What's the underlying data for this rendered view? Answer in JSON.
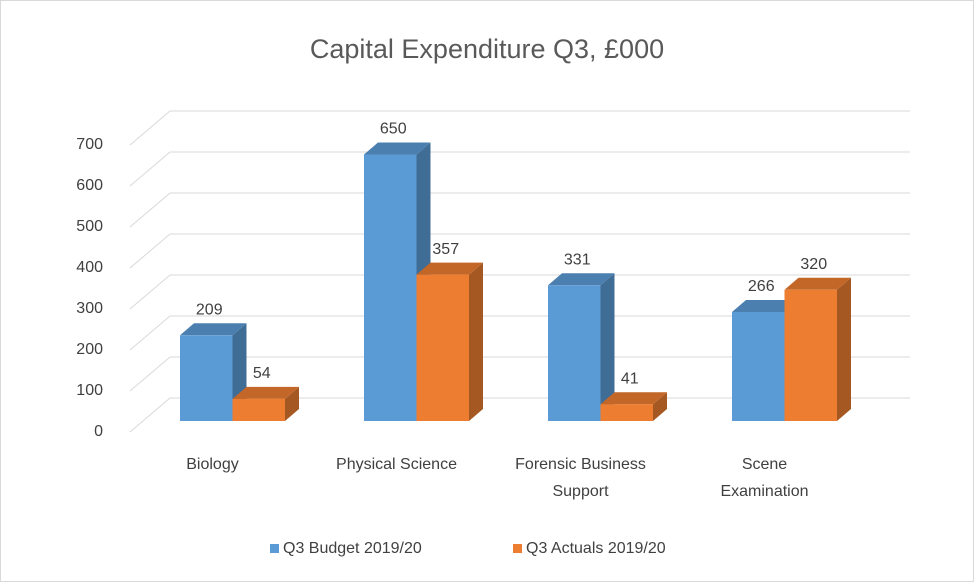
{
  "chart_data": {
    "type": "bar3d",
    "title": "Capital Expenditure Q3, £000",
    "categories": [
      "Biology",
      "Physical Science",
      "Forensic Business Support",
      "Scene Examination"
    ],
    "series": [
      {
        "name": "Q3 Budget 2019/20",
        "color": "#5b9bd5",
        "values": [
          209,
          650,
          331,
          266
        ]
      },
      {
        "name": "Q3 Actuals 2019/20",
        "color": "#ed7d31",
        "values": [
          54,
          357,
          41,
          320
        ]
      }
    ],
    "ylim": [
      0,
      700
    ],
    "yticks": [
      0,
      100,
      200,
      300,
      400,
      500,
      600,
      700
    ],
    "grid": true,
    "legend": "bottom"
  }
}
